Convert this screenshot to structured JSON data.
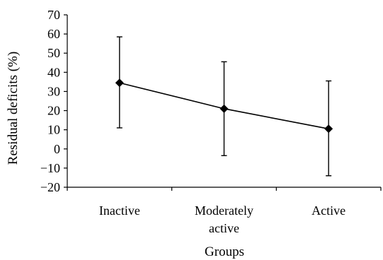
{
  "chart_data": {
    "type": "line",
    "title": "",
    "xlabel": "Groups",
    "ylabel": "Residual deficits (%)",
    "ylim": [
      -20,
      70
    ],
    "ytick_step": 10,
    "yticks": [
      "70",
      "60",
      "50",
      "40",
      "30",
      "20",
      "10",
      "0",
      "−10",
      "−20"
    ],
    "categories": [
      [
        "Inactive"
      ],
      [
        "Moderately",
        "active"
      ],
      [
        "Active"
      ]
    ],
    "series": [
      {
        "values": [
          34.5,
          21,
          10.5
        ],
        "error_low": [
          11,
          -3.5,
          -14
        ],
        "error_high": [
          58.5,
          45.5,
          35.5
        ],
        "marker": "diamond",
        "color": "#000000"
      }
    ],
    "grid": false,
    "legend": "none"
  }
}
